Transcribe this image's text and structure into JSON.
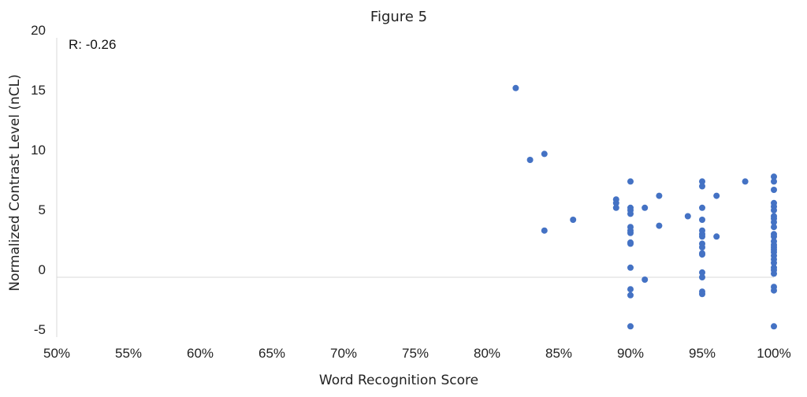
{
  "chart_data": {
    "type": "scatter",
    "title": "Figure 5",
    "xlabel": "Word Recognition Score",
    "ylabel": "Normalized Contrast Level (nCL)",
    "annotation": "R: -0.26",
    "xlim": [
      0.5,
      1.0
    ],
    "ylim": [
      -5,
      20
    ],
    "x_ticks": [
      0.5,
      0.55,
      0.6,
      0.65,
      0.7,
      0.75,
      0.8,
      0.85,
      0.9,
      0.95,
      1.0
    ],
    "x_tick_labels": [
      "50%",
      "55%",
      "60%",
      "65%",
      "70%",
      "75%",
      "80%",
      "85%",
      "90%",
      "95%",
      "100%"
    ],
    "y_ticks": [
      -5,
      0,
      5,
      10,
      15,
      20
    ],
    "y_tick_labels": [
      "-5",
      "0",
      "5",
      "10",
      "15",
      "20"
    ],
    "grid": false,
    "zero_line": true,
    "marker_color": "#4472C4",
    "axis_line_color": "#d9d9d9",
    "points": [
      {
        "x": 0.82,
        "y": 15.8
      },
      {
        "x": 0.83,
        "y": 9.8
      },
      {
        "x": 0.84,
        "y": 10.3
      },
      {
        "x": 0.84,
        "y": 3.9
      },
      {
        "x": 0.86,
        "y": 4.8
      },
      {
        "x": 0.89,
        "y": 6.5
      },
      {
        "x": 0.89,
        "y": 6.2
      },
      {
        "x": 0.89,
        "y": 5.8
      },
      {
        "x": 0.9,
        "y": 8.0
      },
      {
        "x": 0.9,
        "y": 5.8
      },
      {
        "x": 0.9,
        "y": 5.6
      },
      {
        "x": 0.9,
        "y": 5.3
      },
      {
        "x": 0.9,
        "y": 4.2
      },
      {
        "x": 0.9,
        "y": 3.9
      },
      {
        "x": 0.9,
        "y": 3.7
      },
      {
        "x": 0.9,
        "y": 2.9
      },
      {
        "x": 0.9,
        "y": 2.8
      },
      {
        "x": 0.9,
        "y": 0.8
      },
      {
        "x": 0.9,
        "y": -1.0
      },
      {
        "x": 0.9,
        "y": -1.5
      },
      {
        "x": 0.9,
        "y": -4.1
      },
      {
        "x": 0.91,
        "y": 5.8
      },
      {
        "x": 0.91,
        "y": -0.2
      },
      {
        "x": 0.92,
        "y": 6.8
      },
      {
        "x": 0.92,
        "y": 4.3
      },
      {
        "x": 0.94,
        "y": 5.1
      },
      {
        "x": 0.95,
        "y": 8.0
      },
      {
        "x": 0.95,
        "y": 7.6
      },
      {
        "x": 0.95,
        "y": 5.8
      },
      {
        "x": 0.95,
        "y": 4.8
      },
      {
        "x": 0.95,
        "y": 3.9
      },
      {
        "x": 0.95,
        "y": 3.6
      },
      {
        "x": 0.95,
        "y": 3.4
      },
      {
        "x": 0.95,
        "y": 2.8
      },
      {
        "x": 0.95,
        "y": 2.5
      },
      {
        "x": 0.95,
        "y": 2.0
      },
      {
        "x": 0.95,
        "y": 1.9
      },
      {
        "x": 0.95,
        "y": 0.4
      },
      {
        "x": 0.95,
        "y": 0.0
      },
      {
        "x": 0.95,
        "y": -1.2
      },
      {
        "x": 0.95,
        "y": -1.4
      },
      {
        "x": 0.96,
        "y": 6.8
      },
      {
        "x": 0.96,
        "y": 3.4
      },
      {
        "x": 0.98,
        "y": 8.0
      },
      {
        "x": 1.0,
        "y": 8.4
      },
      {
        "x": 1.0,
        "y": 8.0
      },
      {
        "x": 1.0,
        "y": 7.3
      },
      {
        "x": 1.0,
        "y": 6.2
      },
      {
        "x": 1.0,
        "y": 5.9
      },
      {
        "x": 1.0,
        "y": 5.6
      },
      {
        "x": 1.0,
        "y": 5.1
      },
      {
        "x": 1.0,
        "y": 4.9
      },
      {
        "x": 1.0,
        "y": 4.6
      },
      {
        "x": 1.0,
        "y": 4.2
      },
      {
        "x": 1.0,
        "y": 3.6
      },
      {
        "x": 1.0,
        "y": 3.4
      },
      {
        "x": 1.0,
        "y": 3.0
      },
      {
        "x": 1.0,
        "y": 2.7
      },
      {
        "x": 1.0,
        "y": 2.5
      },
      {
        "x": 1.0,
        "y": 2.3
      },
      {
        "x": 1.0,
        "y": 2.1
      },
      {
        "x": 1.0,
        "y": 1.8
      },
      {
        "x": 1.0,
        "y": 1.5
      },
      {
        "x": 1.0,
        "y": 1.2
      },
      {
        "x": 1.0,
        "y": 0.8
      },
      {
        "x": 1.0,
        "y": 0.6
      },
      {
        "x": 1.0,
        "y": 0.3
      },
      {
        "x": 1.0,
        "y": -0.8
      },
      {
        "x": 1.0,
        "y": -1.1
      },
      {
        "x": 1.0,
        "y": -4.1
      }
    ]
  }
}
